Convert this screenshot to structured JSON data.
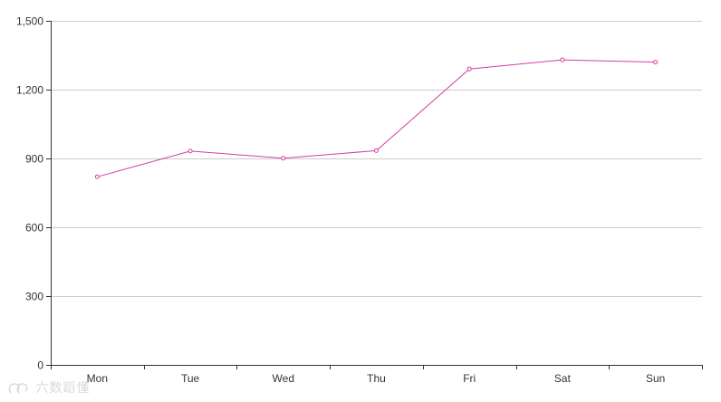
{
  "chart_data": {
    "type": "line",
    "title": "",
    "xlabel": "",
    "ylabel": "",
    "categories": [
      "Mon",
      "Tue",
      "Wed",
      "Thu",
      "Fri",
      "Sat",
      "Sun"
    ],
    "series": [
      {
        "values": [
          820,
          932,
          901,
          934,
          1290,
          1330,
          1320
        ],
        "color": "#d63ca3"
      }
    ],
    "ylim": [
      0,
      1500
    ],
    "yticks": [
      0,
      300,
      600,
      900,
      1200,
      1500
    ],
    "ytick_labels": [
      "0",
      "300",
      "600",
      "900",
      "1,200",
      "1,500"
    ],
    "grid": true,
    "grid_color": "#cccccc",
    "axis_color": "#333333",
    "point_marker": "hollow-circle"
  },
  "watermark": {
    "text": "六数蹈懂",
    "icon": "logo-icon"
  }
}
